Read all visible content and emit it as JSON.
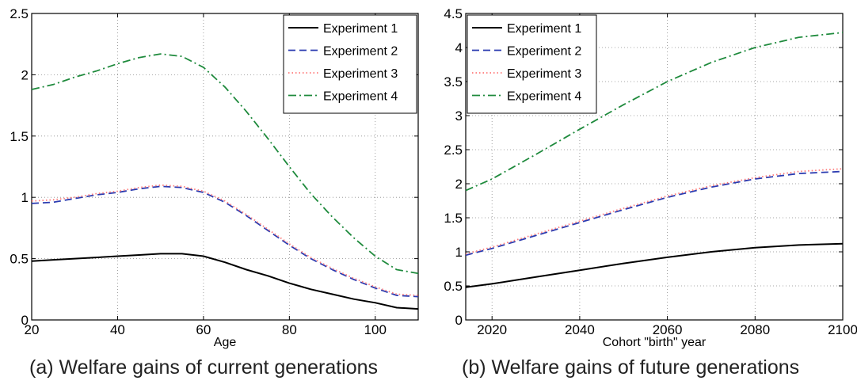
{
  "captions": {
    "a": "(a) Welfare gains of current generations",
    "b": "(b) Welfare gains of future generations"
  },
  "chart_data": [
    {
      "type": "line",
      "xlabel": "Age",
      "ylabel": "",
      "xlim": [
        20,
        110
      ],
      "ylim": [
        0,
        2.5
      ],
      "xticks": [
        20,
        40,
        60,
        80,
        100
      ],
      "yticks": [
        0,
        0.5,
        1,
        1.5,
        2,
        2.5
      ],
      "grid": true,
      "legend_position": "top-right",
      "series": [
        {
          "name": "Experiment 1",
          "color": "#000000",
          "style": "solid",
          "x": [
            20,
            25,
            30,
            35,
            40,
            45,
            50,
            55,
            60,
            65,
            70,
            75,
            80,
            85,
            90,
            95,
            100,
            105,
            110
          ],
          "y": [
            0.48,
            0.49,
            0.5,
            0.51,
            0.52,
            0.53,
            0.54,
            0.54,
            0.52,
            0.47,
            0.41,
            0.36,
            0.3,
            0.25,
            0.21,
            0.17,
            0.14,
            0.1,
            0.09
          ]
        },
        {
          "name": "Experiment 2",
          "color": "#2b3bb0",
          "style": "dashed",
          "x": [
            20,
            25,
            30,
            35,
            40,
            45,
            50,
            55,
            60,
            65,
            70,
            75,
            80,
            85,
            90,
            95,
            100,
            105,
            110
          ],
          "y": [
            0.95,
            0.96,
            0.99,
            1.02,
            1.04,
            1.07,
            1.09,
            1.08,
            1.04,
            0.96,
            0.85,
            0.73,
            0.61,
            0.5,
            0.41,
            0.33,
            0.26,
            0.2,
            0.19
          ]
        },
        {
          "name": "Experiment 3",
          "color": "#ff7a7a",
          "style": "dotted",
          "x": [
            20,
            25,
            30,
            35,
            40,
            45,
            50,
            55,
            60,
            65,
            70,
            75,
            80,
            85,
            90,
            95,
            100,
            105,
            110
          ],
          "y": [
            0.97,
            0.98,
            1.0,
            1.03,
            1.05,
            1.08,
            1.1,
            1.09,
            1.05,
            0.97,
            0.86,
            0.74,
            0.62,
            0.51,
            0.42,
            0.34,
            0.27,
            0.21,
            0.2
          ]
        },
        {
          "name": "Experiment 4",
          "color": "#1e8a3c",
          "style": "dashdot",
          "x": [
            20,
            25,
            30,
            35,
            40,
            45,
            50,
            55,
            60,
            65,
            70,
            75,
            80,
            85,
            90,
            95,
            100,
            105,
            110
          ],
          "y": [
            1.88,
            1.92,
            1.98,
            2.03,
            2.09,
            2.14,
            2.17,
            2.15,
            2.06,
            1.9,
            1.7,
            1.48,
            1.25,
            1.03,
            0.84,
            0.67,
            0.52,
            0.41,
            0.38
          ]
        }
      ]
    },
    {
      "type": "line",
      "xlabel": "Cohort \"birth\" year",
      "ylabel": "",
      "xlim": [
        2014,
        2100
      ],
      "ylim": [
        0,
        4.5
      ],
      "xticks": [
        2020,
        2040,
        2060,
        2080,
        2100
      ],
      "yticks": [
        0,
        0.5,
        1,
        1.5,
        2,
        2.5,
        3,
        3.5,
        4,
        4.5
      ],
      "grid": true,
      "legend_position": "top-left",
      "series": [
        {
          "name": "Experiment 1",
          "color": "#000000",
          "style": "solid",
          "x": [
            2014,
            2020,
            2030,
            2040,
            2050,
            2060,
            2070,
            2080,
            2090,
            2100
          ],
          "y": [
            0.48,
            0.53,
            0.63,
            0.73,
            0.83,
            0.92,
            1.0,
            1.06,
            1.1,
            1.12
          ]
        },
        {
          "name": "Experiment 2",
          "color": "#2b3bb0",
          "style": "dashed",
          "x": [
            2014,
            2020,
            2030,
            2040,
            2050,
            2060,
            2070,
            2080,
            2090,
            2100
          ],
          "y": [
            0.95,
            1.05,
            1.24,
            1.43,
            1.62,
            1.8,
            1.95,
            2.07,
            2.15,
            2.18
          ]
        },
        {
          "name": "Experiment 3",
          "color": "#ff7a7a",
          "style": "dotted",
          "x": [
            2014,
            2020,
            2030,
            2040,
            2050,
            2060,
            2070,
            2080,
            2090,
            2100
          ],
          "y": [
            0.97,
            1.07,
            1.26,
            1.45,
            1.64,
            1.82,
            1.97,
            2.09,
            2.18,
            2.22
          ]
        },
        {
          "name": "Experiment 4",
          "color": "#1e8a3c",
          "style": "dashdot",
          "x": [
            2014,
            2020,
            2030,
            2040,
            2050,
            2060,
            2070,
            2080,
            2090,
            2100
          ],
          "y": [
            1.9,
            2.07,
            2.43,
            2.8,
            3.16,
            3.5,
            3.78,
            4.0,
            4.15,
            4.22
          ]
        }
      ]
    }
  ]
}
